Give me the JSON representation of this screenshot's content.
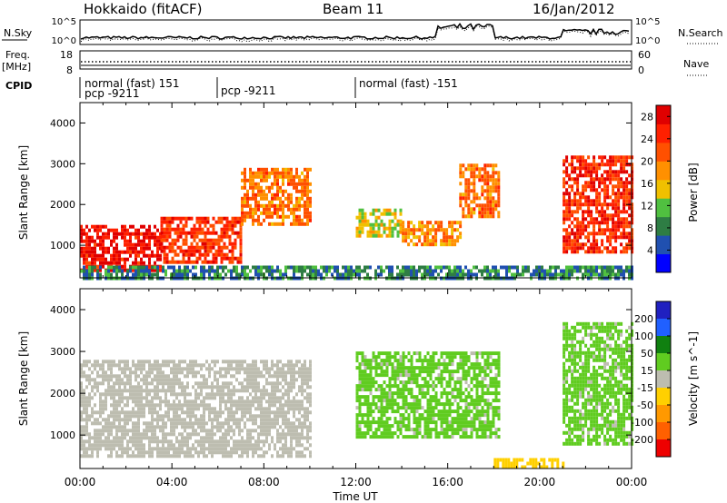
{
  "header": {
    "station": "Hokkaido (fitACF)",
    "beam": "Beam 11",
    "date": "16/Jan/2012"
  },
  "top_panel": {
    "left_label": "N.Sky",
    "right_label": "N.Search",
    "left_ticks": [
      "10^5",
      "10^0"
    ],
    "right_ticks": [
      "10^5",
      "10^0"
    ]
  },
  "freq_panel": {
    "left_label": "Freq.",
    "left_unit": "[MHz]",
    "right_label": "Nave",
    "left_ticks": [
      "18",
      "8"
    ],
    "right_ticks": [
      "60",
      "0"
    ]
  },
  "cpid": {
    "label": "CPID",
    "segments": [
      {
        "start_hour": 0,
        "line1": "normal (fast) 151",
        "line2": "pcp -9211"
      },
      {
        "start_hour": 6,
        "line1": "pcp -9211",
        "line2": ""
      },
      {
        "start_hour": 12,
        "line1": "normal (fast) -151",
        "line2": ""
      }
    ]
  },
  "colors": {
    "power": [
      "#0000ff",
      "#2050b0",
      "#2e7d44",
      "#50c040",
      "#f0c000",
      "#ff9000",
      "#ff5000",
      "#ff2000",
      "#e00000"
    ],
    "velocity": [
      "#2020c0",
      "#2060ff",
      "#108010",
      "#60cc20",
      "#bdbdb0",
      "#ffd000",
      "#ff9900",
      "#ff6000",
      "#ee0000"
    ]
  },
  "chart_data": [
    {
      "type": "heatmap",
      "name": "power",
      "xlabel": "",
      "ylabel": "Slant Range [km]",
      "xlim": [
        0,
        24
      ],
      "ylim": [
        200,
        4500
      ],
      "yticks": [
        1000,
        2000,
        3000,
        4000
      ],
      "colorbar_label": "Power [dB]",
      "colorbar_ticks": [
        "4",
        "8",
        "12",
        "16",
        "20",
        "24",
        "28"
      ],
      "colorbar_range": [
        0,
        30
      ],
      "regions": [
        {
          "t0": 0.0,
          "t1": 3.5,
          "r0": 400,
          "r1": 1500,
          "dB": 27
        },
        {
          "t0": 3.5,
          "t1": 7.0,
          "r0": 600,
          "r1": 1700,
          "dB": 24
        },
        {
          "t0": 7.0,
          "t1": 10.0,
          "r0": 1500,
          "r1": 2900,
          "dB": 20
        },
        {
          "t0": 12.0,
          "t1": 14.0,
          "r0": 1200,
          "r1": 1900,
          "dB": 14
        },
        {
          "t0": 14.0,
          "t1": 16.5,
          "r0": 1000,
          "r1": 1600,
          "dB": 18
        },
        {
          "t0": 16.5,
          "t1": 18.2,
          "r0": 1700,
          "r1": 3000,
          "dB": 20
        },
        {
          "t0": 21.0,
          "t1": 24.0,
          "r0": 800,
          "r1": 3200,
          "dB": 25
        },
        {
          "t0": 0.0,
          "t1": 24.0,
          "r0": 200,
          "r1": 500,
          "dB": 8
        }
      ]
    },
    {
      "type": "heatmap",
      "name": "velocity",
      "xlabel": "Time UT",
      "ylabel": "Slant Range [km]",
      "xlim": [
        0,
        24
      ],
      "ylim": [
        200,
        4500
      ],
      "yticks": [
        1000,
        2000,
        3000,
        4000
      ],
      "xticks": [
        "00:00",
        "04:00",
        "08:00",
        "12:00",
        "16:00",
        "20:00",
        "00:00"
      ],
      "colorbar_label": "Velocity [m s^-1]",
      "colorbar_ticks": [
        "200",
        "100",
        "50",
        "15",
        "-15",
        "-50",
        "-100",
        "-200"
      ],
      "colorbar_range": [
        -250,
        250
      ],
      "regions": [
        {
          "t0": 0.0,
          "t1": 10.0,
          "r0": 500,
          "r1": 2800,
          "v": 0
        },
        {
          "t0": 12.0,
          "t1": 18.2,
          "r0": 1000,
          "r1": 3000,
          "v": 40
        },
        {
          "t0": 21.0,
          "t1": 24.0,
          "r0": 800,
          "r1": 3700,
          "v": 40
        },
        {
          "t0": 18.0,
          "t1": 21.0,
          "r0": 200,
          "r1": 450,
          "v": -60
        }
      ]
    }
  ]
}
